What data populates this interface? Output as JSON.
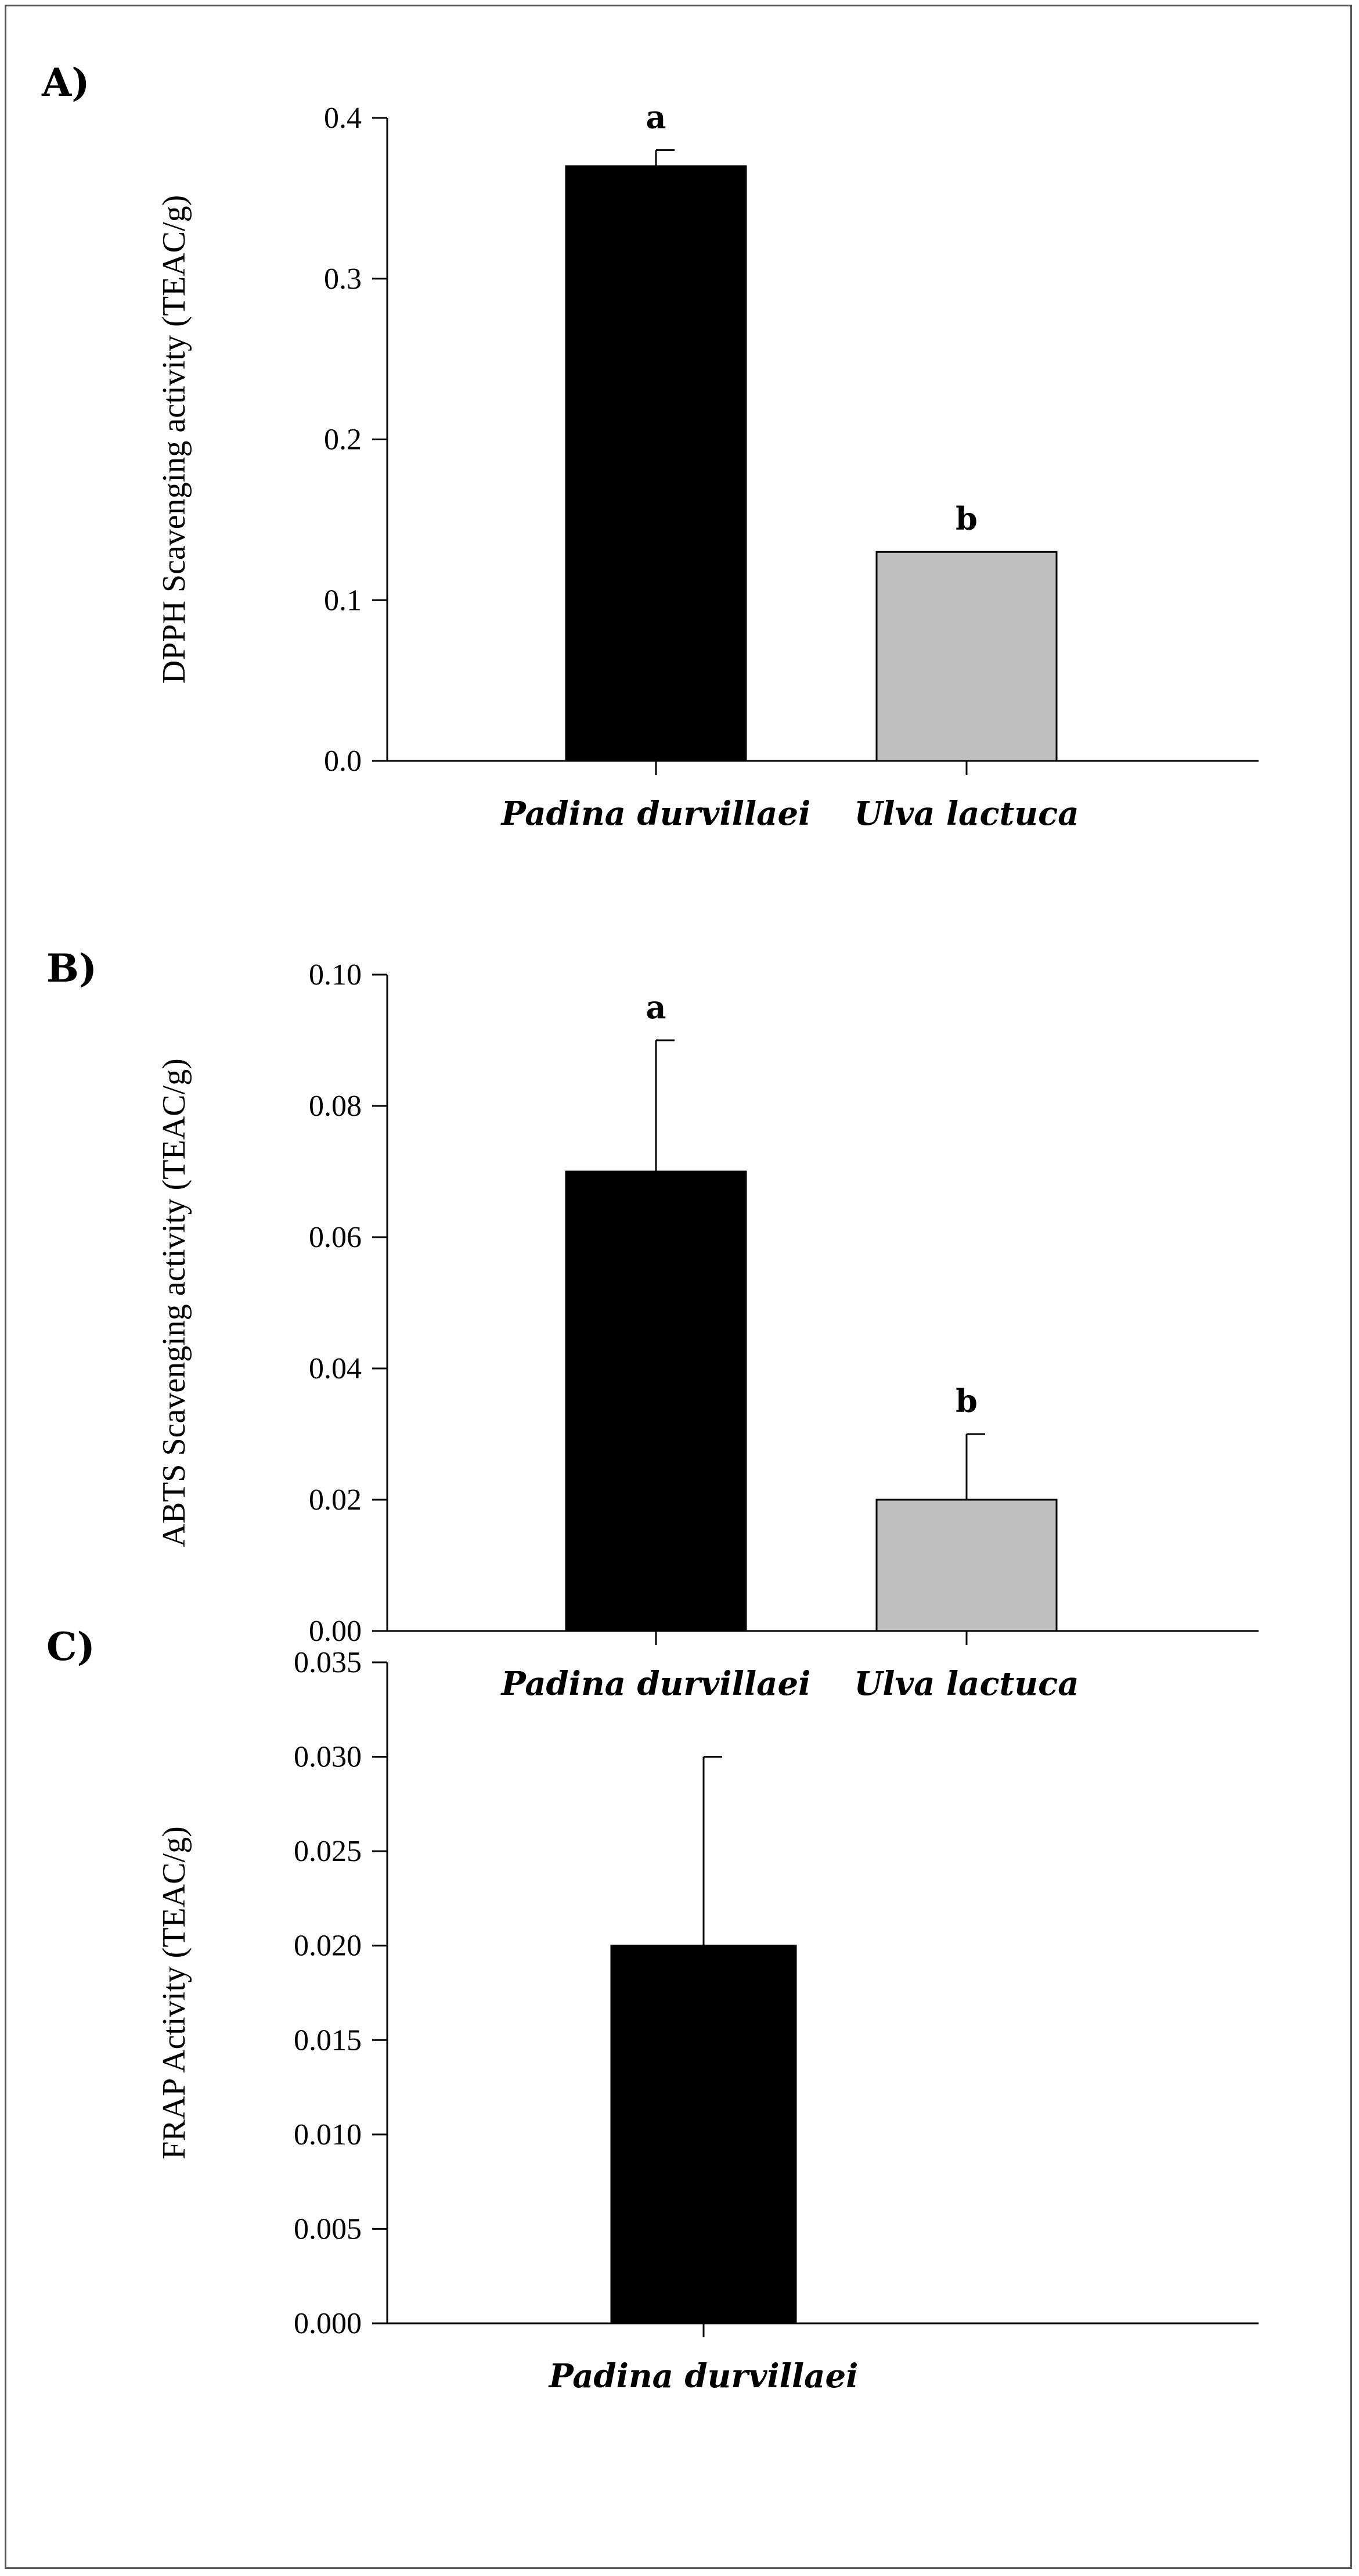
{
  "chart_data": [
    {
      "type": "bar",
      "panel_label": "A)",
      "ylabel": "DPPH Scavenging activity (TEAC/g)",
      "ylim": [
        0.0,
        0.4
      ],
      "yticks": [
        0.0,
        0.1,
        0.2,
        0.3,
        0.4
      ],
      "ytick_labels": [
        "0.0",
        "0.1",
        "0.2",
        "0.3",
        "0.4"
      ],
      "categories": [
        "Padina durvillaei",
        "Ulva lactuca"
      ],
      "values": [
        0.37,
        0.13
      ],
      "errors": [
        0.01,
        0.0
      ],
      "significance": [
        "a",
        "b"
      ],
      "colors": [
        "#000000",
        "#c0c0c0"
      ]
    },
    {
      "type": "bar",
      "panel_label": "B)",
      "ylabel": "ABTS Scavenging activity (TEAC/g)",
      "ylim": [
        0.0,
        0.1
      ],
      "yticks": [
        0.0,
        0.02,
        0.04,
        0.06,
        0.08,
        0.1
      ],
      "ytick_labels": [
        "0.00",
        "0.02",
        "0.04",
        "0.06",
        "0.08",
        "0.10"
      ],
      "categories": [
        "Padina durvillaei",
        "Ulva lactuca"
      ],
      "values": [
        0.07,
        0.02
      ],
      "errors": [
        0.02,
        0.01
      ],
      "significance": [
        "a",
        "b"
      ],
      "colors": [
        "#000000",
        "#c0c0c0"
      ]
    },
    {
      "type": "bar",
      "panel_label": "C)",
      "ylabel": "FRAP Activity (TEAC/g)",
      "ylim": [
        0.0,
        0.035
      ],
      "yticks": [
        0.0,
        0.005,
        0.01,
        0.015,
        0.02,
        0.025,
        0.03,
        0.035
      ],
      "ytick_labels": [
        "0.000",
        "0.005",
        "0.010",
        "0.015",
        "0.020",
        "0.025",
        "0.030",
        "0.035"
      ],
      "categories": [
        "Padina durvillaei"
      ],
      "values": [
        0.02
      ],
      "errors": [
        0.01
      ],
      "significance": [
        ""
      ],
      "colors": [
        "#000000"
      ]
    }
  ]
}
